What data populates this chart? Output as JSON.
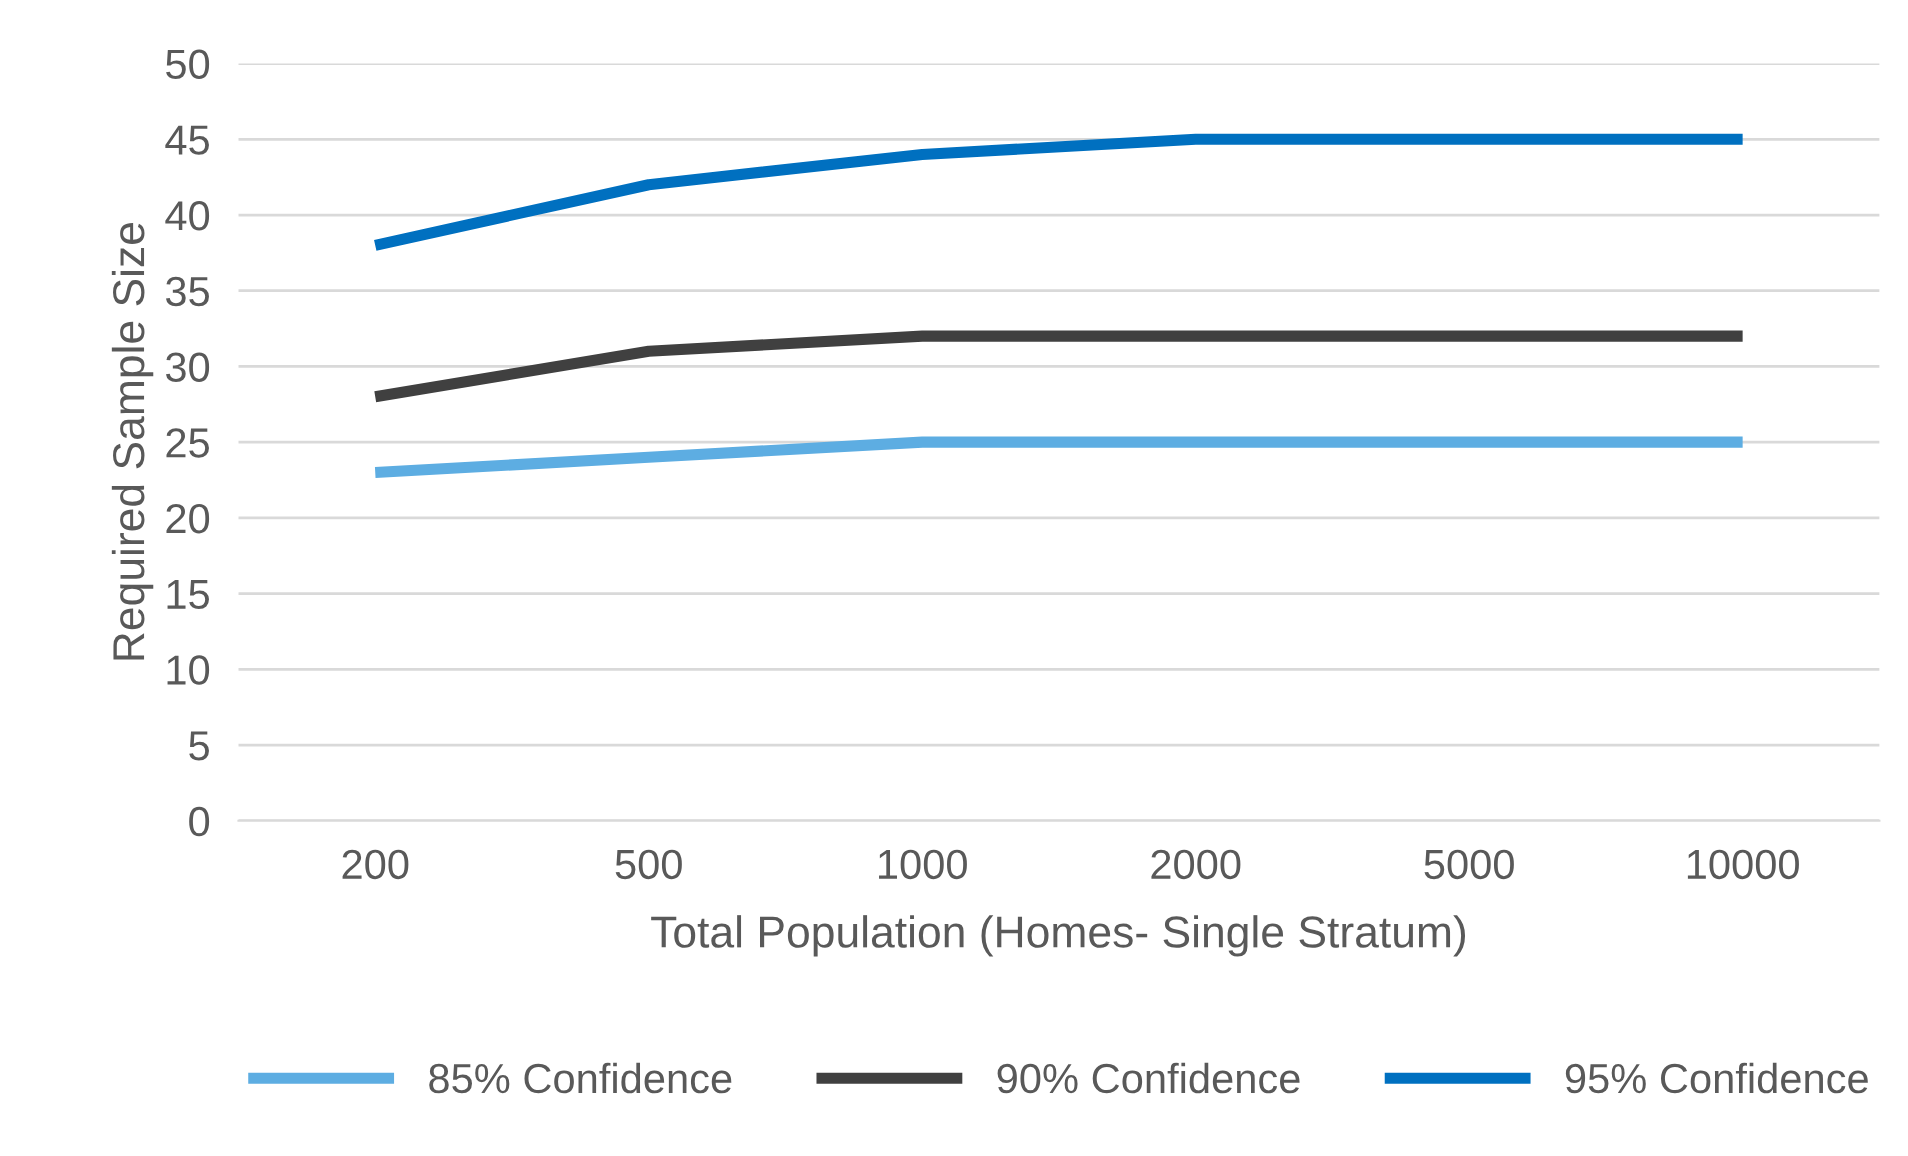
{
  "chart_data": {
    "type": "line",
    "xlabel": "Total Population (Homes- Single Stratum)",
    "ylabel": "Required Sample Size",
    "categories": [
      "200",
      "500",
      "1000",
      "2000",
      "5000",
      "10000"
    ],
    "series": [
      {
        "name": "85% Confidence",
        "color": "#5dade2",
        "values": [
          23,
          24,
          25,
          25,
          25,
          25
        ]
      },
      {
        "name": "90% Confidence",
        "color": "#404040",
        "values": [
          28,
          31,
          32,
          32,
          32,
          32
        ]
      },
      {
        "name": "95% Confidence",
        "color": "#0070c0",
        "values": [
          38,
          42,
          44,
          45,
          45,
          45
        ]
      }
    ],
    "ylim": [
      0,
      50
    ],
    "yticks": [
      0,
      5,
      10,
      15,
      20,
      25,
      30,
      35,
      40,
      45,
      50
    ],
    "grid": "y",
    "legend": "bottom",
    "marker": "none",
    "line_style": "solid"
  }
}
